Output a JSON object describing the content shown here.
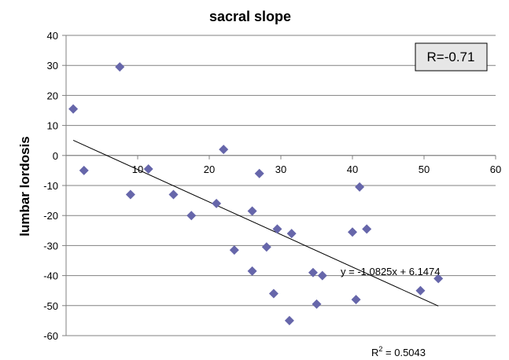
{
  "chart_data": {
    "type": "scatter",
    "title": "sacral slope",
    "xlabel": "",
    "ylabel": "lumbar lordosis",
    "xlim": [
      0,
      60
    ],
    "ylim": [
      -60,
      40
    ],
    "xticks": [
      10,
      20,
      30,
      40,
      50,
      60
    ],
    "yticks": [
      40,
      30,
      20,
      10,
      0,
      -10,
      -20,
      -30,
      -40,
      -50,
      -60
    ],
    "grid": true,
    "marker_color": "#6666aa",
    "series": [
      {
        "points": [
          [
            1,
            15.5
          ],
          [
            2.5,
            -5
          ],
          [
            7.5,
            29.5
          ],
          [
            9,
            -13
          ],
          [
            11.5,
            -4.5
          ],
          [
            15,
            -13
          ],
          [
            17.5,
            -20
          ],
          [
            21,
            -16
          ],
          [
            22,
            2
          ],
          [
            23.5,
            -31.5
          ],
          [
            26,
            -18.5
          ],
          [
            26,
            -38.5
          ],
          [
            27,
            -6
          ],
          [
            28,
            -30.5
          ],
          [
            29,
            -46
          ],
          [
            29.5,
            -24.5
          ],
          [
            31.2,
            -55
          ],
          [
            31.5,
            -26
          ],
          [
            34.5,
            -39
          ],
          [
            35,
            -49.5
          ],
          [
            35.8,
            -40
          ],
          [
            40,
            -25.5
          ],
          [
            40.5,
            -48
          ],
          [
            41,
            -10.5
          ],
          [
            42,
            -24.5
          ],
          [
            49.5,
            -45
          ],
          [
            52,
            -41
          ]
        ]
      }
    ],
    "trendline": {
      "slope": -1.0825,
      "intercept": 6.1474,
      "x_range": [
        1,
        52
      ]
    },
    "annotations": {
      "equation": "y = -1.0825x + 6.1474",
      "r_squared_prefix": "R",
      "r_squared_sup": "2",
      "r_squared_value": " = 0.5043",
      "r_box": "R=-0.71"
    },
    "colors": {
      "grid": "#808080",
      "axis": "#808080",
      "box_fill": "#e6e6e6",
      "trendline": "#000000"
    }
  }
}
